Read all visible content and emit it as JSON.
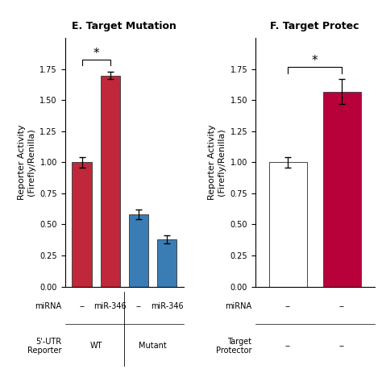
{
  "chart_data": [
    {
      "type": "bar",
      "title": "E. Target Mutation",
      "ylabel": "Reporter Activity\n(Firefly/Renilla)",
      "categories": [
        "--",
        "miR-346",
        "--",
        "miR-346"
      ],
      "category_label": "miRNA",
      "groups": {
        "label": "5'-UTR\nReporter",
        "names": [
          "WT",
          "Mutant"
        ]
      },
      "values": [
        1.0,
        1.7,
        0.58,
        0.38
      ],
      "errors": [
        0.04,
        0.03,
        0.04,
        0.03
      ],
      "colors": [
        "#c0273a",
        "#c0273a",
        "#3a7db5",
        "#3a7db5"
      ],
      "ylim": [
        0,
        2.0
      ],
      "yticks": [
        {
          "value": 0.0,
          "label": "0.00"
        },
        {
          "value": 0.25,
          "label": "0.25"
        },
        {
          "value": 0.5,
          "label": "0.50"
        },
        {
          "value": 0.75,
          "label": "0.75"
        },
        {
          "value": 1.0,
          "label": "1.00"
        },
        {
          "value": 1.25,
          "label": "1.25"
        },
        {
          "value": 1.5,
          "label": "1.50"
        },
        {
          "value": 1.75,
          "label": "1.75"
        }
      ],
      "annotations": [
        {
          "text": "*",
          "between": [
            0,
            1
          ]
        }
      ]
    },
    {
      "type": "bar",
      "title": "F. Target Protec",
      "ylabel": "Reporter Activity\n(Firefly/Renilla)",
      "categories": [
        "--",
        "--"
      ],
      "category_label": "miRNA",
      "groups": {
        "label": "Target\nProtector",
        "names": [
          "--",
          "--"
        ]
      },
      "values": [
        1.0,
        1.57
      ],
      "errors": [
        0.04,
        0.1
      ],
      "colors": [
        "#ffffff",
        "#b8003a"
      ],
      "ylim": [
        0,
        2.0
      ],
      "yticks": [
        {
          "value": 0.0,
          "label": "0.00"
        },
        {
          "value": 0.25,
          "label": "0.25"
        },
        {
          "value": 0.5,
          "label": "0.50"
        },
        {
          "value": 0.75,
          "label": "0.75"
        },
        {
          "value": 1.0,
          "label": "1.00"
        },
        {
          "value": 1.25,
          "label": "1.25"
        },
        {
          "value": 1.5,
          "label": "1.50"
        },
        {
          "value": 1.75,
          "label": "1.75"
        }
      ],
      "annotations": [
        {
          "text": "*",
          "between": [
            0,
            1
          ]
        }
      ]
    }
  ]
}
